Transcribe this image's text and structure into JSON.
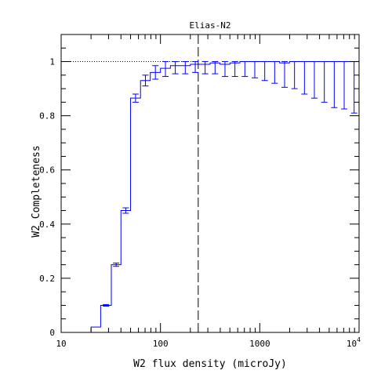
{
  "chart_data": {
    "type": "line",
    "title": "Elias-N2",
    "xlabel": "W2 flux density (microJy)",
    "ylabel": "W2 Completeness",
    "xscale": "log",
    "xlim": [
      10,
      10000
    ],
    "ylim": [
      0,
      1.1
    ],
    "x_tick_labels": [
      "10",
      "100",
      "1000",
      "10"
    ],
    "x_tick_exponent": "4",
    "y_tick_labels": [
      "0",
      "0.2",
      "0.4",
      "0.6",
      "0.8",
      "1"
    ],
    "y_ticks": [
      0,
      0.2,
      0.4,
      0.6,
      0.8,
      1.0
    ],
    "reference_line_y": 1.0,
    "vertical_line_x": 240,
    "series": [
      {
        "color": "#0000ff",
        "bins": [
          {
            "x0": 10,
            "x1": 20,
            "y": 0,
            "err": 0
          },
          {
            "x0": 20,
            "x1": 25,
            "y": 0.02,
            "err": 0
          },
          {
            "x0": 25,
            "x1": 32,
            "y": 0.1,
            "err": 0.003
          },
          {
            "x0": 32,
            "x1": 40,
            "y": 0.25,
            "err": 0.006
          },
          {
            "x0": 40,
            "x1": 50,
            "y": 0.45,
            "err": 0.01
          },
          {
            "x0": 50,
            "x1": 63,
            "y": 0.865,
            "err": 0.015
          },
          {
            "x0": 63,
            "x1": 79,
            "y": 0.93,
            "err": 0.02
          },
          {
            "x0": 79,
            "x1": 100,
            "y": 0.96,
            "err": 0.025
          },
          {
            "x0": 100,
            "x1": 126,
            "y": 0.975,
            "err": 0.03
          },
          {
            "x0": 126,
            "x1": 158,
            "y": 0.985,
            "err": 0.03
          },
          {
            "x0": 158,
            "x1": 200,
            "y": 0.985,
            "err": 0.03
          },
          {
            "x0": 200,
            "x1": 251,
            "y": 0.99,
            "err": 0.03
          },
          {
            "x0": 251,
            "x1": 316,
            "y": 0.99,
            "err": 0.035
          },
          {
            "x0": 316,
            "x1": 398,
            "y": 0.995,
            "err": 0.04
          },
          {
            "x0": 398,
            "x1": 501,
            "y": 0.99,
            "err": 0.045
          },
          {
            "x0": 501,
            "x1": 631,
            "y": 0.995,
            "err": 0.05
          },
          {
            "x0": 631,
            "x1": 794,
            "y": 1.0,
            "err": 0.055
          },
          {
            "x0": 794,
            "x1": 1000,
            "y": 1.0,
            "err": 0.06
          },
          {
            "x0": 1000,
            "x1": 1259,
            "y": 1.0,
            "err": 0.07
          },
          {
            "x0": 1259,
            "x1": 1585,
            "y": 1.0,
            "err": 0.08
          },
          {
            "x0": 1585,
            "x1": 1995,
            "y": 0.995,
            "err": 0.09
          },
          {
            "x0": 1995,
            "x1": 2512,
            "y": 1.0,
            "err": 0.1
          },
          {
            "x0": 2512,
            "x1": 3162,
            "y": 1.0,
            "err": 0.12
          },
          {
            "x0": 3162,
            "x1": 3981,
            "y": 1.0,
            "err": 0.135
          },
          {
            "x0": 3981,
            "x1": 5012,
            "y": 1.0,
            "err": 0.15
          },
          {
            "x0": 5012,
            "x1": 6310,
            "y": 1.0,
            "err": 0.17
          },
          {
            "x0": 6310,
            "x1": 7943,
            "y": 1.0,
            "err": 0.175
          },
          {
            "x0": 7943,
            "x1": 10000,
            "y": 1.0,
            "err": 0.19
          }
        ]
      }
    ]
  }
}
